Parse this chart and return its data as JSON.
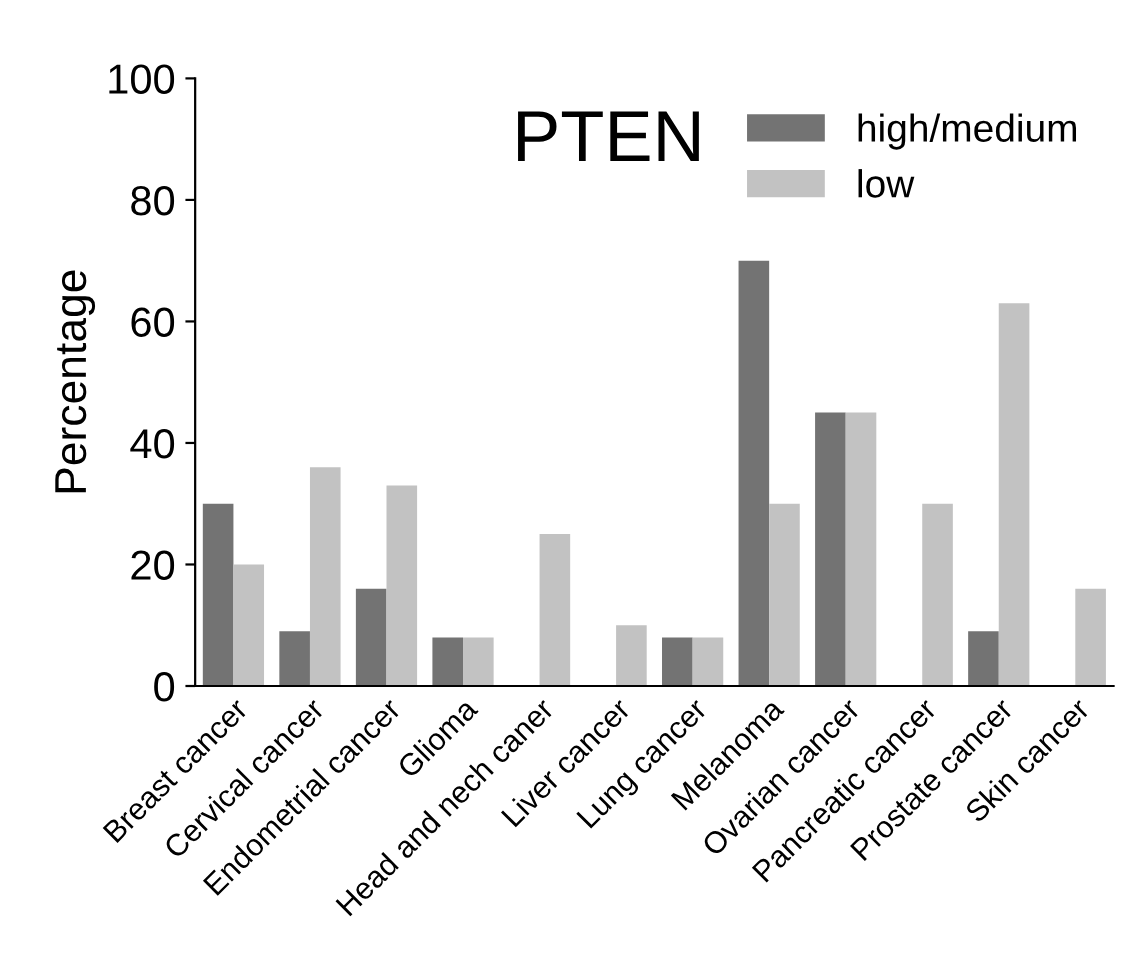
{
  "chart_data": {
    "type": "bar",
    "title": "PTEN",
    "ylabel": "Percentage",
    "categories": [
      "Breast cancer",
      "Cervical cancer",
      "Endometrial cancer",
      "Glioma",
      "Head and nech caner",
      "Liver cancer",
      "Lung cancer",
      "Melanoma",
      "Ovarian cancer",
      "Pancreatic cancer",
      "Prostate cancer",
      "Skin cancer"
    ],
    "series": [
      {
        "name": "high/medium",
        "color": "#737373",
        "values": [
          30,
          9,
          16,
          8,
          0,
          0,
          8,
          70,
          45,
          0,
          9,
          0
        ]
      },
      {
        "name": "low",
        "color": "#c2c2c2",
        "values": [
          20,
          36,
          33,
          8,
          25,
          10,
          8,
          30,
          45,
          30,
          63,
          16
        ]
      }
    ],
    "ylim": [
      0,
      100
    ],
    "yticks": [
      0,
      20,
      40,
      60,
      80,
      100
    ],
    "grid": false,
    "legend": "top right"
  }
}
